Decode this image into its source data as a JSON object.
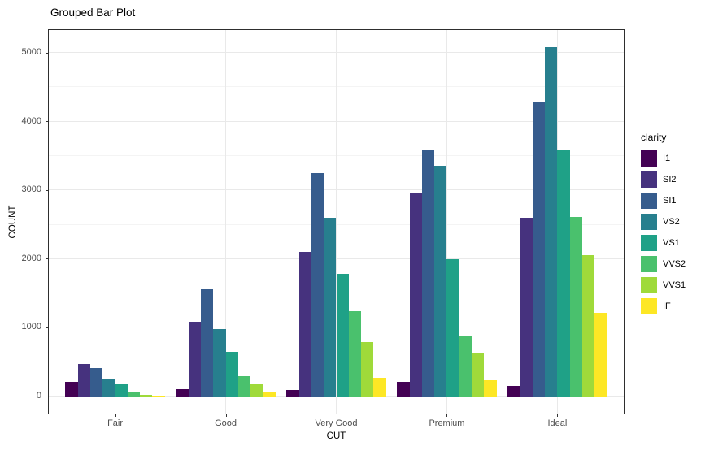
{
  "chart_data": {
    "type": "bar",
    "mode": "grouped",
    "title": "Grouped Bar Plot",
    "xlabel": "CUT",
    "ylabel": "COUNT",
    "legend_title": "clarity",
    "legend_position": "right",
    "categories": [
      "Fair",
      "Good",
      "Very Good",
      "Premium",
      "Ideal"
    ],
    "series": [
      {
        "name": "I1",
        "color": "#440154",
        "values": [
          210,
          96,
          84,
          205,
          146
        ]
      },
      {
        "name": "SI2",
        "color": "#46327E",
        "values": [
          466,
          1081,
          2100,
          2949,
          2598
        ]
      },
      {
        "name": "SI1",
        "color": "#365C8D",
        "values": [
          408,
          1560,
          3240,
          3575,
          4282
        ]
      },
      {
        "name": "VS2",
        "color": "#277F8E",
        "values": [
          261,
          978,
          2591,
          3357,
          5071
        ]
      },
      {
        "name": "VS1",
        "color": "#1FA187",
        "values": [
          170,
          648,
          1775,
          1989,
          3589
        ]
      },
      {
        "name": "VVS2",
        "color": "#4AC16D",
        "values": [
          69,
          286,
          1235,
          870,
          2606
        ]
      },
      {
        "name": "VVS1",
        "color": "#9FDA3A",
        "values": [
          17,
          186,
          789,
          616,
          2047
        ]
      },
      {
        "name": "IF",
        "color": "#FDE725",
        "values": [
          9,
          71,
          268,
          230,
          1212
        ]
      }
    ],
    "ylim": [
      0,
      5071
    ],
    "panel_ylim": [
      -253,
      5325
    ],
    "yticks": [
      0,
      1000,
      2000,
      3000,
      4000,
      5000
    ],
    "yticks_minor": [
      500,
      1500,
      2500,
      3500,
      4500
    ],
    "grid": true,
    "panel_border_color": "#2e2e2e",
    "axis_text_color": "#4d4d4d"
  }
}
